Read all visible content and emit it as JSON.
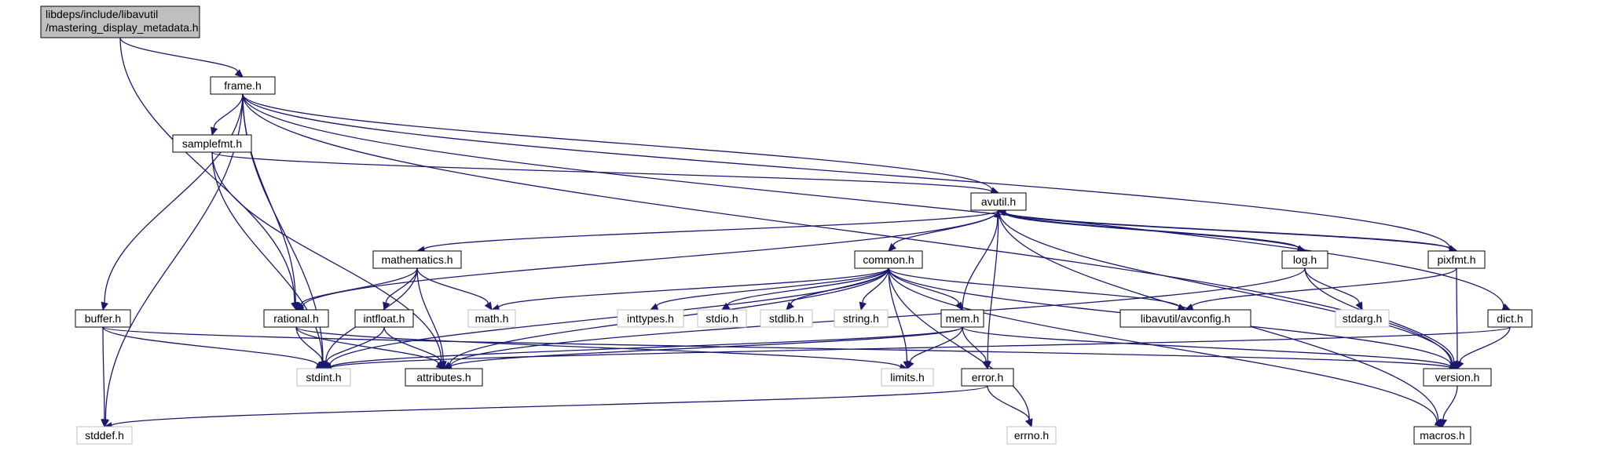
{
  "graph": {
    "colors": {
      "edge": "#191970",
      "main_fill": "#bfbfbf",
      "system_border": "#bfbfbf"
    },
    "nodes": [
      {
        "id": "main",
        "label_lines": [
          "libdeps/include/libavutil",
          "/mastering_display_metadata.h"
        ],
        "kind": "main"
      },
      {
        "id": "frame",
        "label_lines": [
          "frame.h"
        ],
        "kind": "header"
      },
      {
        "id": "samplefmt",
        "label_lines": [
          "samplefmt.h"
        ],
        "kind": "header"
      },
      {
        "id": "avutil",
        "label_lines": [
          "avutil.h"
        ],
        "kind": "header"
      },
      {
        "id": "mathematics",
        "label_lines": [
          "mathematics.h"
        ],
        "kind": "header"
      },
      {
        "id": "common",
        "label_lines": [
          "common.h"
        ],
        "kind": "header"
      },
      {
        "id": "log",
        "label_lines": [
          "log.h"
        ],
        "kind": "header"
      },
      {
        "id": "pixfmt",
        "label_lines": [
          "pixfmt.h"
        ],
        "kind": "header"
      },
      {
        "id": "buffer",
        "label_lines": [
          "buffer.h"
        ],
        "kind": "header"
      },
      {
        "id": "rational",
        "label_lines": [
          "rational.h"
        ],
        "kind": "header"
      },
      {
        "id": "intfloat",
        "label_lines": [
          "intfloat.h"
        ],
        "kind": "header"
      },
      {
        "id": "math",
        "label_lines": [
          "math.h"
        ],
        "kind": "system"
      },
      {
        "id": "inttypes",
        "label_lines": [
          "inttypes.h"
        ],
        "kind": "system"
      },
      {
        "id": "stdio",
        "label_lines": [
          "stdio.h"
        ],
        "kind": "system"
      },
      {
        "id": "stdlib",
        "label_lines": [
          "stdlib.h"
        ],
        "kind": "system"
      },
      {
        "id": "string",
        "label_lines": [
          "string.h"
        ],
        "kind": "system"
      },
      {
        "id": "mem",
        "label_lines": [
          "mem.h"
        ],
        "kind": "header"
      },
      {
        "id": "avconfig",
        "label_lines": [
          "libavutil/avconfig.h"
        ],
        "kind": "header"
      },
      {
        "id": "stdarg",
        "label_lines": [
          "stdarg.h"
        ],
        "kind": "system"
      },
      {
        "id": "dict",
        "label_lines": [
          "dict.h"
        ],
        "kind": "header"
      },
      {
        "id": "stdint",
        "label_lines": [
          "stdint.h"
        ],
        "kind": "system"
      },
      {
        "id": "attributes",
        "label_lines": [
          "attributes.h"
        ],
        "kind": "header"
      },
      {
        "id": "limits",
        "label_lines": [
          "limits.h"
        ],
        "kind": "system"
      },
      {
        "id": "error",
        "label_lines": [
          "error.h"
        ],
        "kind": "header"
      },
      {
        "id": "version",
        "label_lines": [
          "version.h"
        ],
        "kind": "header"
      },
      {
        "id": "stddef",
        "label_lines": [
          "stddef.h"
        ],
        "kind": "system"
      },
      {
        "id": "errno",
        "label_lines": [
          "errno.h"
        ],
        "kind": "system"
      },
      {
        "id": "macros",
        "label_lines": [
          "macros.h"
        ],
        "kind": "header"
      }
    ],
    "edges": [
      [
        "main",
        "frame"
      ],
      [
        "main",
        "rational"
      ],
      [
        "frame",
        "samplefmt"
      ],
      [
        "frame",
        "avutil"
      ],
      [
        "frame",
        "pixfmt"
      ],
      [
        "frame",
        "buffer"
      ],
      [
        "frame",
        "rational"
      ],
      [
        "frame",
        "stdint"
      ],
      [
        "frame",
        "stddef"
      ],
      [
        "frame",
        "dict"
      ],
      [
        "frame",
        "version"
      ],
      [
        "samplefmt",
        "avutil"
      ],
      [
        "samplefmt",
        "stdint"
      ],
      [
        "samplefmt",
        "attributes"
      ],
      [
        "avutil",
        "mathematics"
      ],
      [
        "avutil",
        "common"
      ],
      [
        "avutil",
        "log"
      ],
      [
        "avutil",
        "pixfmt"
      ],
      [
        "avutil",
        "rational"
      ],
      [
        "avutil",
        "error"
      ],
      [
        "avutil",
        "version"
      ],
      [
        "avutil",
        "macros"
      ],
      [
        "mathematics",
        "rational"
      ],
      [
        "mathematics",
        "intfloat"
      ],
      [
        "mathematics",
        "math"
      ],
      [
        "mathematics",
        "stdint"
      ],
      [
        "mathematics",
        "attributes"
      ],
      [
        "common",
        "math"
      ],
      [
        "common",
        "inttypes"
      ],
      [
        "common",
        "stdio"
      ],
      [
        "common",
        "stdlib"
      ],
      [
        "common",
        "string"
      ],
      [
        "common",
        "mem"
      ],
      [
        "common",
        "avconfig"
      ],
      [
        "common",
        "stdint"
      ],
      [
        "common",
        "attributes"
      ],
      [
        "common",
        "limits"
      ],
      [
        "common",
        "errno"
      ],
      [
        "common",
        "version"
      ],
      [
        "common",
        "macros"
      ],
      [
        "log",
        "avutil"
      ],
      [
        "log",
        "stdarg"
      ],
      [
        "log",
        "version"
      ],
      [
        "log",
        "attributes"
      ],
      [
        "pixfmt",
        "avutil"
      ],
      [
        "pixfmt",
        "avconfig"
      ],
      [
        "pixfmt",
        "version"
      ],
      [
        "buffer",
        "stdint"
      ],
      [
        "buffer",
        "stddef"
      ],
      [
        "buffer",
        "version"
      ],
      [
        "rational",
        "stdint"
      ],
      [
        "rational",
        "limits"
      ],
      [
        "rational",
        "attributes"
      ],
      [
        "intfloat",
        "stdint"
      ],
      [
        "intfloat",
        "attributes"
      ],
      [
        "mem",
        "avutil"
      ],
      [
        "mem",
        "error"
      ],
      [
        "mem",
        "limits"
      ],
      [
        "mem",
        "stdint"
      ],
      [
        "mem",
        "attributes"
      ],
      [
        "mem",
        "version"
      ],
      [
        "dict",
        "stdint"
      ],
      [
        "dict",
        "version"
      ],
      [
        "error",
        "errno"
      ],
      [
        "error",
        "stddef"
      ],
      [
        "version",
        "macros"
      ]
    ]
  }
}
